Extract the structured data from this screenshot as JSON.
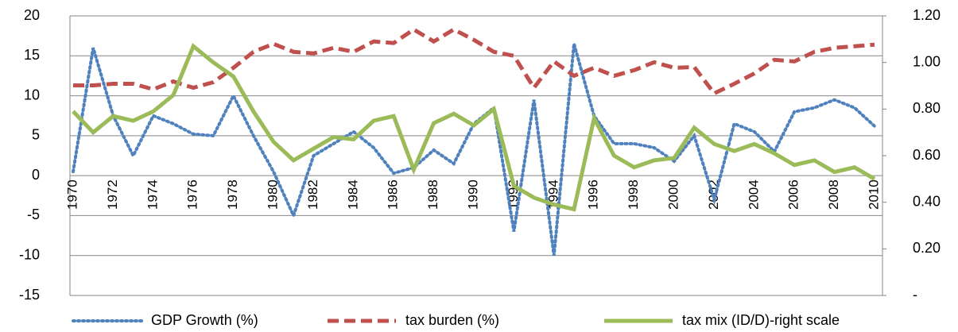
{
  "chart_data": {
    "type": "line",
    "categories": [
      "1970",
      null,
      "1972",
      null,
      "1974",
      null,
      "1976",
      null,
      "1978",
      null,
      "1980",
      null,
      "1982",
      null,
      "1984",
      null,
      "1986",
      null,
      "1988",
      null,
      "1990",
      null,
      "1992",
      null,
      "1994",
      null,
      "1996",
      null,
      "1998",
      null,
      "2000",
      null,
      "2002",
      null,
      "2004",
      null,
      "2006",
      null,
      "2008",
      null,
      "2010"
    ],
    "ylim": [
      -15,
      20
    ],
    "yticks": [
      -15,
      -10,
      -5,
      0,
      5,
      10,
      15,
      20
    ],
    "y2lim": [
      0,
      1.2
    ],
    "y2ticks": [
      {
        "value": 0,
        "label": "-"
      },
      {
        "value": 0.2,
        "label": "0.20"
      },
      {
        "value": 0.4,
        "label": "0.40"
      },
      {
        "value": 0.6,
        "label": "0.60"
      },
      {
        "value": 0.8,
        "label": "0.80"
      },
      {
        "value": 1.0,
        "label": "1.00"
      },
      {
        "value": 1.2,
        "label": "1.20"
      }
    ],
    "grid": true,
    "legend": "bottom",
    "series": [
      {
        "name": "GDP Growth (%)",
        "color": "#4f81bd",
        "style": "dotted",
        "values": [
          0.5,
          16,
          7.5,
          2.5,
          7.5,
          6.5,
          5.2,
          5,
          10,
          5,
          0.5,
          -5,
          2.5,
          4,
          5.5,
          3.5,
          0.3,
          1,
          3.2,
          1.5,
          6.5,
          8.5,
          -7,
          9.5,
          -10,
          16.5,
          7.5,
          4,
          4,
          3.5,
          1.8,
          5,
          -3,
          6.5,
          5.5,
          3,
          8,
          8.5,
          9.5,
          8.5,
          6.2
        ]
      },
      {
        "name": "tax burden (%)",
        "color": "#c0504d",
        "style": "dashed",
        "values": [
          11.3,
          11.3,
          11.5,
          11.5,
          10.8,
          11.8,
          11,
          11.7,
          13.5,
          15.5,
          16.5,
          15.5,
          15.3,
          16,
          15.5,
          16.8,
          16.6,
          18.3,
          16.8,
          18.3,
          17,
          15.5,
          15,
          11,
          14.3,
          12.5,
          13.5,
          12.5,
          13.2,
          14.2,
          13.5,
          13.6,
          10.3,
          11.5,
          12.8,
          14.5,
          14.3,
          15.5,
          16,
          16.2,
          16.4
        ]
      },
      {
        "name": "tax mix (ID/D)-right scale",
        "color": "#9bbb59",
        "style": "solid",
        "axis": "y2",
        "values": [
          0.79,
          0.7,
          0.77,
          0.75,
          0.79,
          0.86,
          1.07,
          1.0,
          0.94,
          0.79,
          0.66,
          0.58,
          0.63,
          0.68,
          0.67,
          0.75,
          0.77,
          0.54,
          0.74,
          0.78,
          0.73,
          0.8,
          0.47,
          0.42,
          0.39,
          0.37,
          0.76,
          0.6,
          0.55,
          0.58,
          0.59,
          0.72,
          0.65,
          0.62,
          0.65,
          0.61,
          0.56,
          0.58,
          0.53,
          0.55,
          0.5
        ]
      }
    ]
  }
}
